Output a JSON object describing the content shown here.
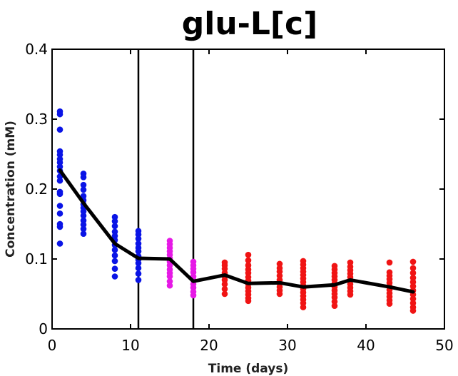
{
  "chart_data": {
    "type": "scatter",
    "title": "glu-L[c]",
    "xlabel": "Time (days)",
    "ylabel": "Concentration (mM)",
    "xlim": [
      0,
      50
    ],
    "ylim": [
      0,
      0.4
    ],
    "x_ticks": [
      "0",
      "10",
      "20",
      "30",
      "40",
      "50"
    ],
    "y_ticks": [
      "0",
      "0.1",
      "0.2",
      "0.3",
      "0.4"
    ],
    "grid": false,
    "legend": "none",
    "vertical_lines": [
      11,
      18
    ],
    "series": [
      {
        "color": "#0a14e6",
        "points": [
          [
            1,
            0.311
          ],
          [
            1,
            0.307
          ],
          [
            1,
            0.285
          ],
          [
            1,
            0.254
          ],
          [
            1,
            0.249
          ],
          [
            1,
            0.243
          ],
          [
            1,
            0.238
          ],
          [
            1,
            0.232
          ],
          [
            1,
            0.226
          ],
          [
            1,
            0.218
          ],
          [
            1,
            0.212
          ],
          [
            1,
            0.196
          ],
          [
            1,
            0.193
          ],
          [
            1,
            0.176
          ],
          [
            1,
            0.165
          ],
          [
            1,
            0.15
          ],
          [
            1,
            0.146
          ],
          [
            1,
            0.122
          ],
          [
            4,
            0.222
          ],
          [
            4,
            0.217
          ],
          [
            4,
            0.206
          ],
          [
            4,
            0.199
          ],
          [
            4,
            0.19
          ],
          [
            4,
            0.184
          ],
          [
            4,
            0.178
          ],
          [
            4,
            0.173
          ],
          [
            4,
            0.168
          ],
          [
            4,
            0.162
          ],
          [
            4,
            0.155
          ],
          [
            4,
            0.149
          ],
          [
            4,
            0.143
          ],
          [
            4,
            0.136
          ],
          [
            8,
            0.16
          ],
          [
            8,
            0.154
          ],
          [
            8,
            0.147
          ],
          [
            8,
            0.139
          ],
          [
            8,
            0.133
          ],
          [
            8,
            0.127
          ],
          [
            8,
            0.12
          ],
          [
            8,
            0.113
          ],
          [
            8,
            0.105
          ],
          [
            8,
            0.097
          ],
          [
            8,
            0.086
          ],
          [
            8,
            0.075
          ],
          [
            11,
            0.14
          ],
          [
            11,
            0.135
          ],
          [
            11,
            0.129
          ],
          [
            11,
            0.122
          ],
          [
            11,
            0.116
          ],
          [
            11,
            0.111
          ],
          [
            11,
            0.104
          ],
          [
            11,
            0.099
          ],
          [
            11,
            0.094
          ],
          [
            11,
            0.087
          ],
          [
            11,
            0.079
          ],
          [
            11,
            0.07
          ]
        ]
      },
      {
        "color": "#e619e6",
        "points": [
          [
            15,
            0.126
          ],
          [
            15,
            0.121
          ],
          [
            15,
            0.116
          ],
          [
            15,
            0.111
          ],
          [
            15,
            0.106
          ],
          [
            15,
            0.101
          ],
          [
            15,
            0.096
          ],
          [
            15,
            0.091
          ],
          [
            15,
            0.085
          ],
          [
            15,
            0.08
          ],
          [
            15,
            0.075
          ],
          [
            15,
            0.068
          ],
          [
            15,
            0.062
          ],
          [
            18,
            0.096
          ],
          [
            18,
            0.091
          ],
          [
            18,
            0.086
          ],
          [
            18,
            0.081
          ],
          [
            18,
            0.075
          ],
          [
            18,
            0.07
          ],
          [
            18,
            0.064
          ],
          [
            18,
            0.059
          ],
          [
            18,
            0.053
          ],
          [
            18,
            0.048
          ]
        ]
      },
      {
        "color": "#f01414",
        "points": [
          [
            22,
            0.095
          ],
          [
            22,
            0.091
          ],
          [
            22,
            0.086
          ],
          [
            22,
            0.08
          ],
          [
            22,
            0.075
          ],
          [
            22,
            0.07
          ],
          [
            22,
            0.064
          ],
          [
            22,
            0.057
          ],
          [
            22,
            0.05
          ],
          [
            25,
            0.106
          ],
          [
            25,
            0.098
          ],
          [
            25,
            0.091
          ],
          [
            25,
            0.085
          ],
          [
            25,
            0.08
          ],
          [
            25,
            0.074
          ],
          [
            25,
            0.069
          ],
          [
            25,
            0.064
          ],
          [
            25,
            0.059
          ],
          [
            25,
            0.054
          ],
          [
            25,
            0.049
          ],
          [
            25,
            0.044
          ],
          [
            25,
            0.04
          ],
          [
            29,
            0.093
          ],
          [
            29,
            0.087
          ],
          [
            29,
            0.082
          ],
          [
            29,
            0.076
          ],
          [
            29,
            0.07
          ],
          [
            29,
            0.065
          ],
          [
            29,
            0.06
          ],
          [
            29,
            0.055
          ],
          [
            29,
            0.05
          ],
          [
            32,
            0.097
          ],
          [
            32,
            0.092
          ],
          [
            32,
            0.087
          ],
          [
            32,
            0.082
          ],
          [
            32,
            0.077
          ],
          [
            32,
            0.072
          ],
          [
            32,
            0.067
          ],
          [
            32,
            0.062
          ],
          [
            32,
            0.057
          ],
          [
            32,
            0.052
          ],
          [
            32,
            0.047
          ],
          [
            32,
            0.042
          ],
          [
            32,
            0.037
          ],
          [
            32,
            0.031
          ],
          [
            36,
            0.09
          ],
          [
            36,
            0.085
          ],
          [
            36,
            0.08
          ],
          [
            36,
            0.075
          ],
          [
            36,
            0.07
          ],
          [
            36,
            0.065
          ],
          [
            36,
            0.06
          ],
          [
            36,
            0.055
          ],
          [
            36,
            0.05
          ],
          [
            36,
            0.045
          ],
          [
            36,
            0.039
          ],
          [
            36,
            0.033
          ],
          [
            38,
            0.095
          ],
          [
            38,
            0.089
          ],
          [
            38,
            0.084
          ],
          [
            38,
            0.079
          ],
          [
            38,
            0.074
          ],
          [
            38,
            0.069
          ],
          [
            38,
            0.064
          ],
          [
            38,
            0.059
          ],
          [
            38,
            0.054
          ],
          [
            38,
            0.049
          ],
          [
            43,
            0.095
          ],
          [
            43,
            0.081
          ],
          [
            43,
            0.076
          ],
          [
            43,
            0.071
          ],
          [
            43,
            0.066
          ],
          [
            43,
            0.061
          ],
          [
            43,
            0.056
          ],
          [
            43,
            0.051
          ],
          [
            43,
            0.046
          ],
          [
            43,
            0.041
          ],
          [
            43,
            0.036
          ],
          [
            46,
            0.096
          ],
          [
            46,
            0.087
          ],
          [
            46,
            0.08
          ],
          [
            46,
            0.073
          ],
          [
            46,
            0.067
          ],
          [
            46,
            0.061
          ],
          [
            46,
            0.055
          ],
          [
            46,
            0.049
          ],
          [
            46,
            0.043
          ],
          [
            46,
            0.037
          ],
          [
            46,
            0.031
          ],
          [
            46,
            0.026
          ]
        ]
      }
    ],
    "mean_line": {
      "color": "#000000",
      "x": [
        1,
        4,
        8,
        11,
        15,
        18,
        22,
        25,
        29,
        32,
        36,
        38,
        43,
        46
      ],
      "y": [
        0.227,
        0.18,
        0.122,
        0.101,
        0.1,
        0.068,
        0.077,
        0.065,
        0.066,
        0.06,
        0.063,
        0.07,
        0.06,
        0.053
      ]
    }
  }
}
